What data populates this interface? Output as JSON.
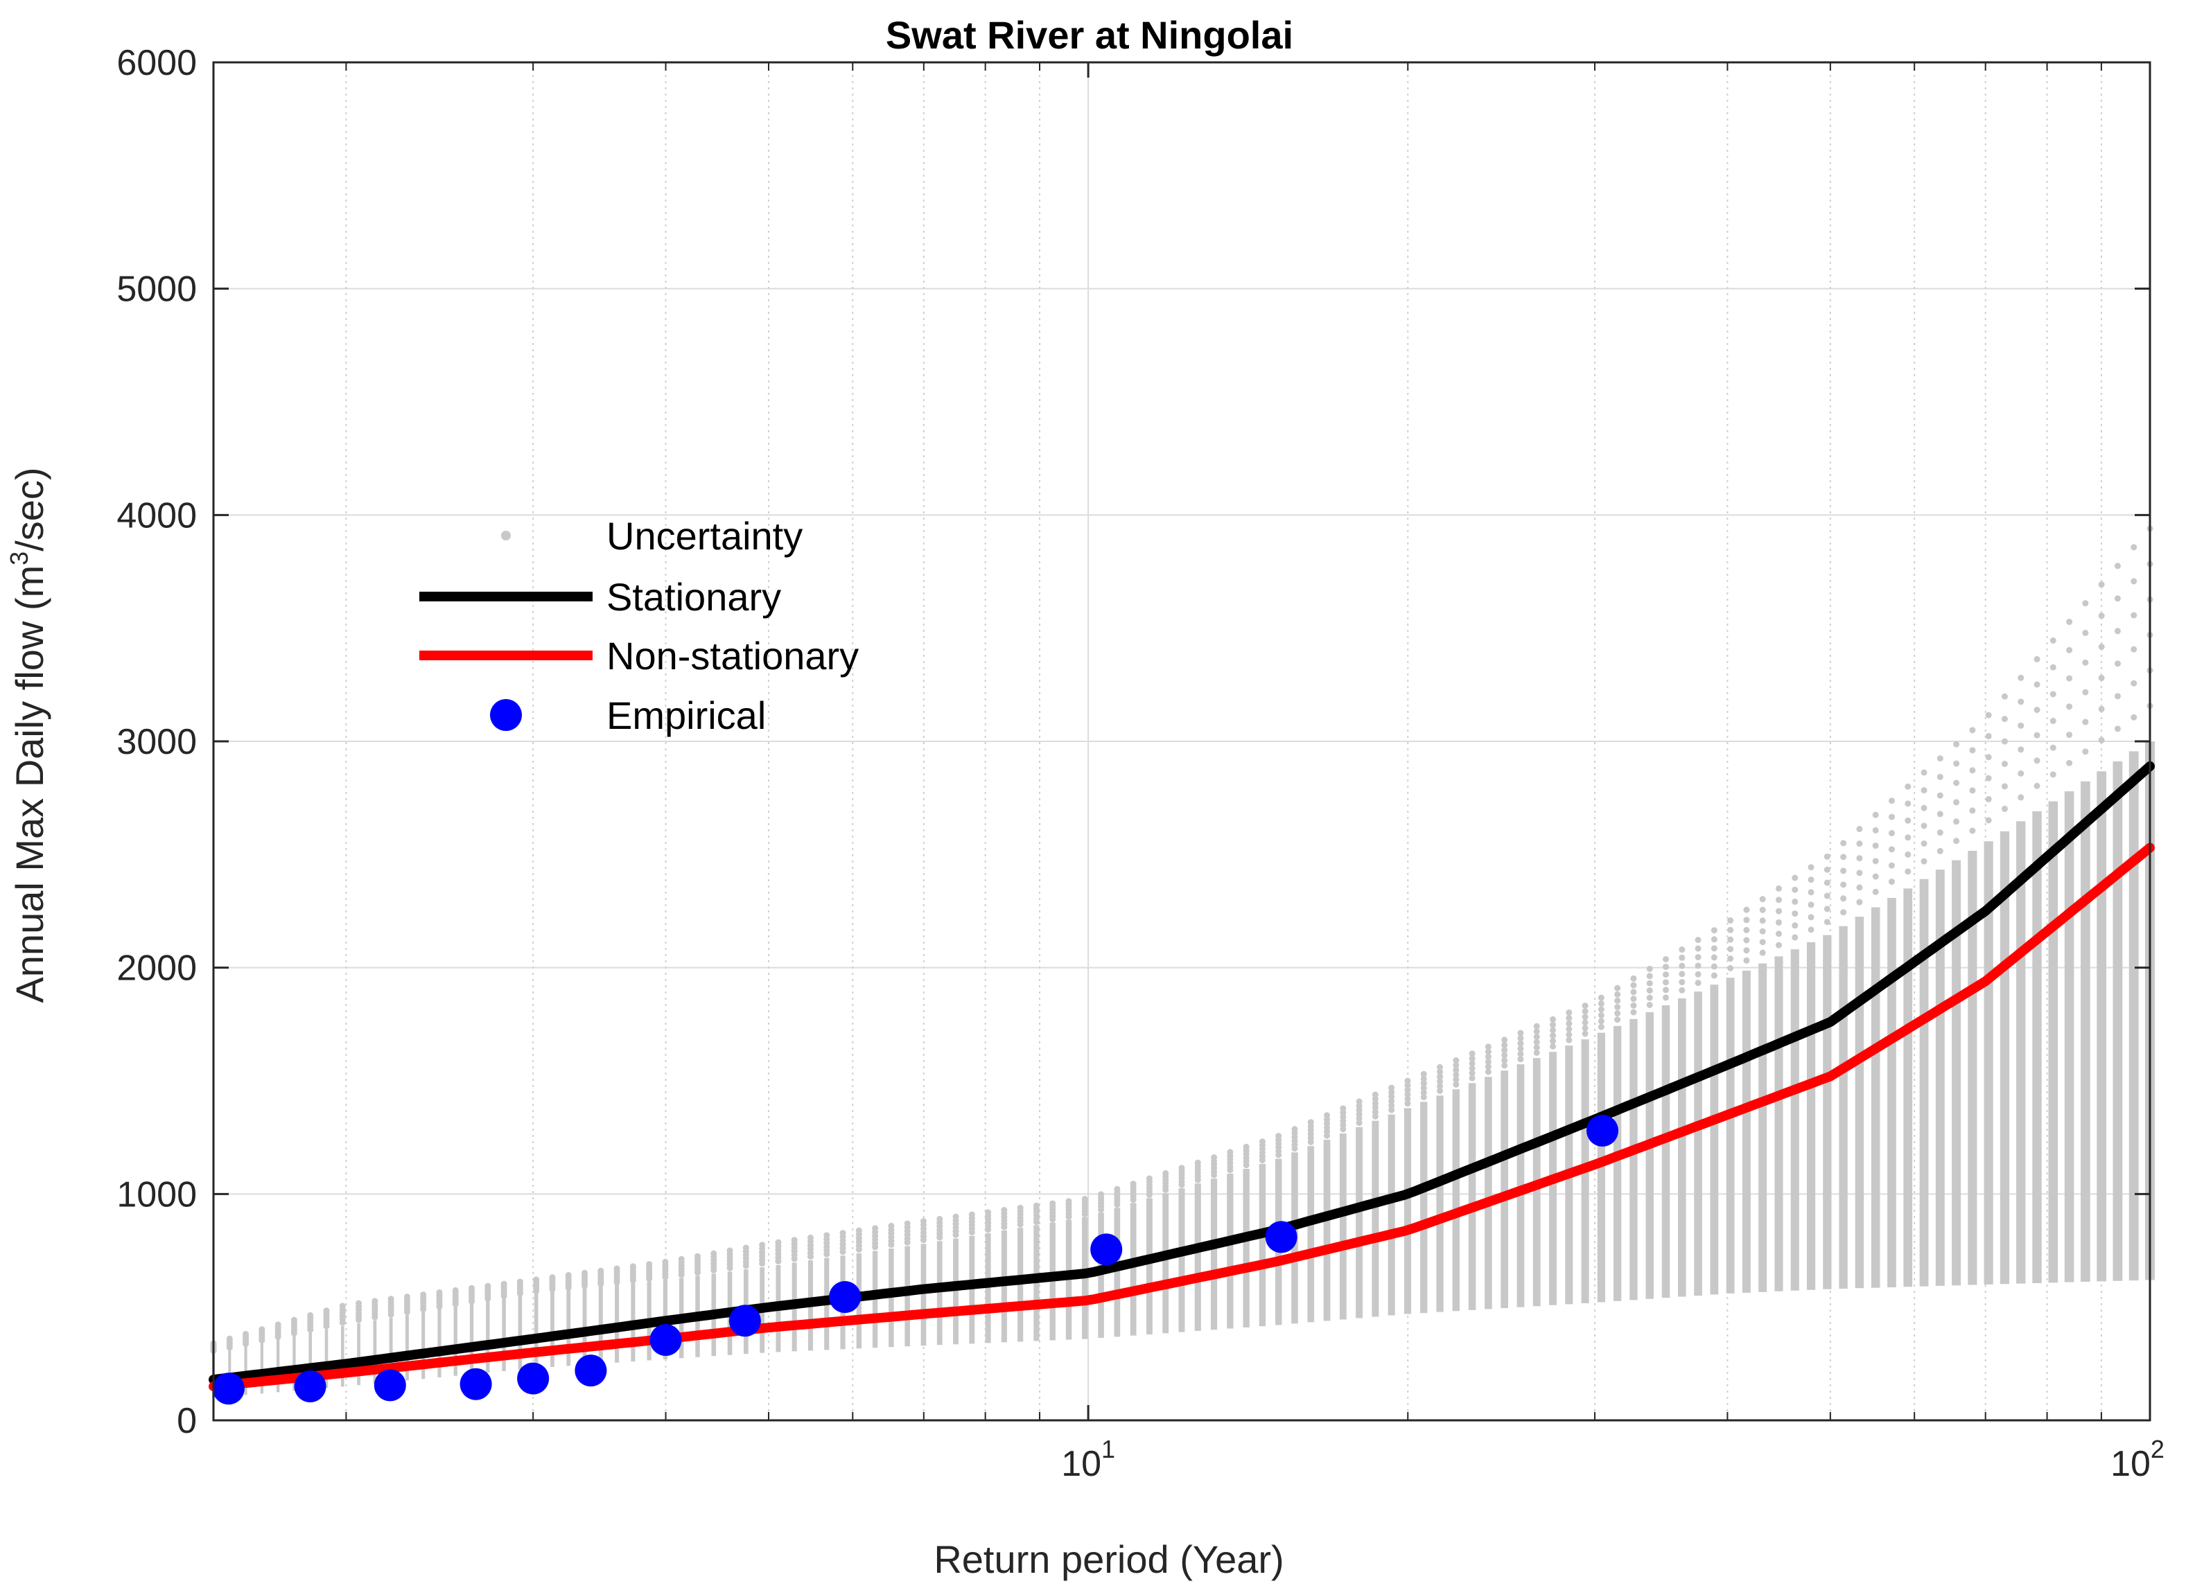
{
  "chart_data": {
    "type": "line",
    "title": "Swat River at Ningolai",
    "xlabel": "Return period (Year)",
    "ylabel": "Annual Max  Daily flow (m³/sec)",
    "ylabel_parts": {
      "before": "Annual Max  Daily flow (m",
      "sup": "3",
      "after": "/sec)"
    },
    "xscale": "log",
    "xlim": [
      1.5,
      100
    ],
    "ylim": [
      0,
      6000
    ],
    "grid": true,
    "legend_position": "center-left",
    "x_ticks": [
      {
        "value": 10,
        "base": "10",
        "exp": "1"
      },
      {
        "value": 100,
        "base": "10",
        "exp": "2"
      }
    ],
    "y_ticks": [
      {
        "value": 0,
        "label": "0"
      },
      {
        "value": 1000,
        "label": "1000"
      },
      {
        "value": 2000,
        "label": "2000"
      },
      {
        "value": 3000,
        "label": "3000"
      },
      {
        "value": 4000,
        "label": "4000"
      },
      {
        "value": 5000,
        "label": "5000"
      },
      {
        "value": 6000,
        "label": "6000"
      }
    ],
    "series": [
      {
        "name": "Stationary",
        "color": "#000000",
        "x": [
          1.5,
          2,
          3,
          4,
          5,
          7,
          10,
          15,
          20,
          30,
          40,
          50,
          70,
          100
        ],
        "y": [
          180,
          250,
          360,
          440,
          500,
          580,
          650,
          840,
          1000,
          1330,
          1570,
          1760,
          2250,
          2890
        ]
      },
      {
        "name": "Non-stationary",
        "color": "#ff0000",
        "x": [
          1.5,
          2,
          3,
          4,
          5,
          7,
          10,
          15,
          20,
          30,
          40,
          50,
          70,
          100
        ],
        "y": [
          150,
          210,
          300,
          360,
          410,
          470,
          530,
          700,
          840,
          1130,
          1350,
          1520,
          1940,
          2530
        ]
      },
      {
        "name": "Empirical",
        "color": "#0000ff",
        "x": [
          1.55,
          1.85,
          2.2,
          2.65,
          3.0,
          3.4,
          4.0,
          4.75,
          5.9,
          10.4,
          15.2,
          30.5
        ],
        "y": [
          140,
          150,
          155,
          160,
          185,
          220,
          355,
          440,
          545,
          755,
          810,
          1280
        ]
      }
    ],
    "uncertainty": {
      "name": "Uncertainty",
      "color": "#c8c8c8",
      "x": [
        1.5,
        2,
        3,
        4,
        5,
        7,
        10,
        15,
        20,
        30,
        40,
        50,
        70,
        100
      ],
      "lower": [
        100,
        150,
        230,
        270,
        300,
        330,
        360,
        420,
        470,
        520,
        560,
        580,
        600,
        620
      ],
      "band_upper": [
        300,
        420,
        560,
        620,
        680,
        780,
        900,
        1150,
        1380,
        1700,
        1950,
        2150,
        2550,
        3000
      ],
      "outer_upper": [
        340,
        510,
        620,
        700,
        780,
        880,
        980,
        1250,
        1500,
        1850,
        2200,
        2500,
        3100,
        3940
      ]
    },
    "legend": [
      {
        "label": "Uncertainty",
        "marker": "dot",
        "color": "#c8c8c8"
      },
      {
        "label": "Stationary",
        "marker": "line",
        "color": "#000000"
      },
      {
        "label": "Non-stationary",
        "marker": "line",
        "color": "#ff0000"
      },
      {
        "label": "Empirical",
        "marker": "circle",
        "color": "#0000ff"
      }
    ]
  }
}
